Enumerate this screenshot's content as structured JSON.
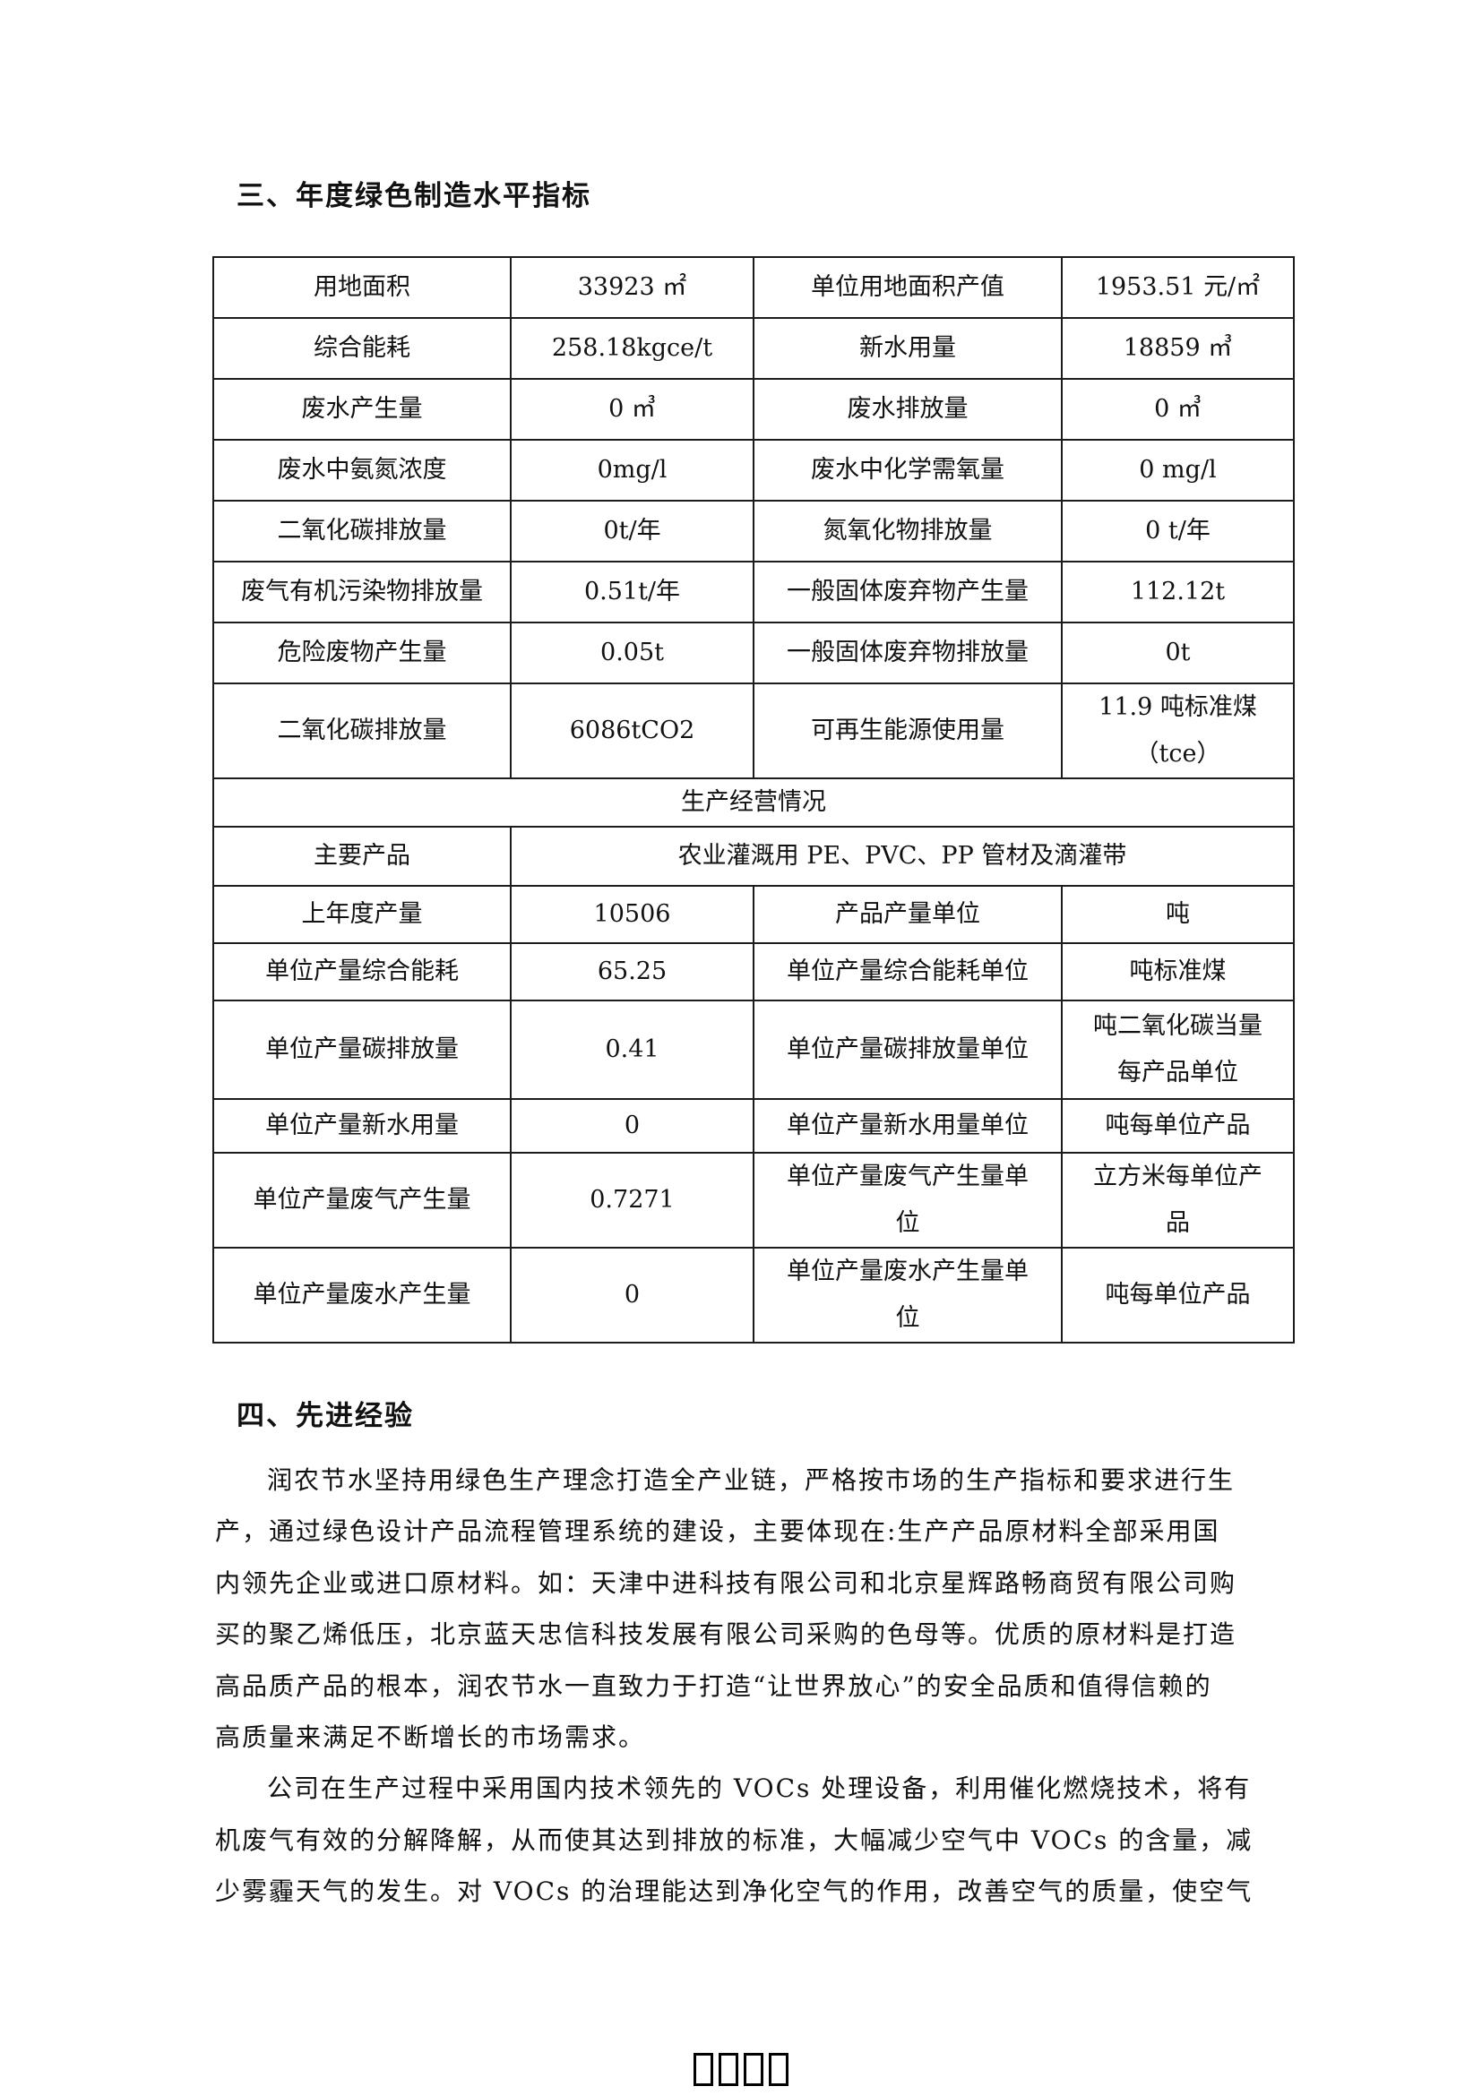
{
  "page": {
    "section3_title": "三、年度绿色制造水平指标",
    "section4_title": "四、先进经验"
  },
  "table": {
    "section_header": "生产经营情况",
    "rows": [
      [
        "用地面积",
        "33923 ㎡",
        "单位用地面积产值",
        "1953.51 元/㎡"
      ],
      [
        "综合能耗",
        "258.18kgce/t",
        "新水用量",
        "18859 ㎥"
      ],
      [
        "废水产生量",
        "0 ㎥",
        "废水排放量",
        "0 ㎥"
      ],
      [
        "废水中氨氮浓度",
        "0mg/l",
        "废水中化学需氧量",
        "0 mg/l"
      ],
      [
        "二氧化碳排放量",
        "0t/年",
        "氮氧化物排放量",
        "0 t/年"
      ],
      [
        "废气有机污染物排放量",
        "0.51t/年",
        "一般固体废弃物产生量",
        "112.12t"
      ],
      [
        "危险废物产生量",
        "0.05t",
        "一般固体废弃物排放量",
        "0t"
      ],
      [
        "二氧化碳排放量",
        "6086tCO2",
        "可再生能源使用量",
        "11.9 吨标准煤\n（tce）"
      ],
      [
        "生产经营情况"
      ],
      [
        "主要产品",
        "农业灌溉用 PE、PVC、PP 管材及滴灌带"
      ],
      [
        "上年度产量",
        "10506",
        "产品产量单位",
        "吨"
      ],
      [
        "单位产量综合能耗",
        "65.25",
        "单位产量综合能耗单位",
        "吨标准煤"
      ],
      [
        "单位产量碳排放量",
        "0.41",
        "单位产量碳排放量单位",
        "吨二氧化碳当量\n每产品单位"
      ],
      [
        "单位产量新水用量",
        "0",
        "单位产量新水用量单位",
        "吨每单位产品"
      ],
      [
        "单位产量废气产生量",
        "0.7271",
        "单位产量废气产生量单\n位",
        "立方米每单位产\n品"
      ],
      [
        "单位产量废水产生量",
        "0",
        "单位产量废水产生量单\n位",
        "吨每单位产品"
      ]
    ]
  },
  "paragraphs": [
    {
      "lines": [
        "润农节水坚持用绿色生产理念打造全产业链，严格按市场的生产指标和要求进行生",
        "产，通过绿色设计产品流程管理系统的建设，主要体现在:生产产品原材料全部采用国",
        "内领先企业或进口原材料。如：天津中进科技有限公司和北京星辉路畅商贸有限公司购",
        "买的聚乙烯低压，北京蓝天忠信科技发展有限公司采购的色母等。优质的原材料是打造",
        "高品质产品的根本，润农节水一直致力于打造“让世界放心”的安全品质和值得信赖的",
        "高质量来满足不断增长的市场需求。"
      ]
    },
    {
      "lines": [
        "公司在生产过程中采用国内技术领先的 VOCs 处理设备，利用催化燃烧技术，将有",
        "机废气有效的分解降解，从而使其达到排放的标准，大幅减少空气中 VOCs 的含量，减",
        "少雾霾天气的发生。对 VOCs 的治理能达到净化空气的作用，改善空气的质量，使空气"
      ]
    }
  ],
  "footer": {
    "missing_glyph_count": 4
  }
}
